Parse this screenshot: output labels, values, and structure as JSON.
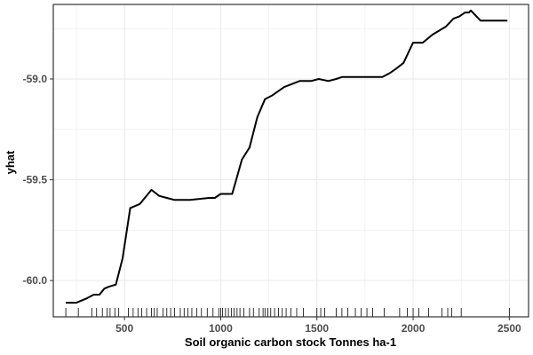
{
  "chart_data": {
    "type": "line",
    "title": "",
    "xlabel": "Soil organic carbon stock Tonnes ha-1",
    "ylabel": "yhat",
    "xlim": [
      130,
      2600
    ],
    "ylim": [
      -60.18,
      -58.63
    ],
    "x_ticks": [
      500,
      1000,
      1500,
      2000,
      2500
    ],
    "y_ticks": [
      -60.0,
      -59.5,
      -59.0
    ],
    "x_tick_labels": [
      "500",
      "1000",
      "1500",
      "2000",
      "2500"
    ],
    "y_tick_labels": [
      "-60.0",
      "-59.5",
      "-59.0"
    ],
    "grid": true,
    "series": [
      {
        "x": [
          195,
          250,
          300,
          340,
          370,
          395,
          420,
          455,
          490,
          530,
          580,
          640,
          680,
          720,
          760,
          840,
          940,
          970,
          1000,
          1020,
          1060,
          1110,
          1150,
          1190,
          1230,
          1270,
          1330,
          1410,
          1470,
          1510,
          1560,
          1600,
          1630,
          1690,
          1780,
          1840,
          1880,
          1910,
          1950,
          2000,
          2050,
          2100,
          2170,
          2210,
          2240,
          2270,
          2290,
          2300,
          2350,
          2400,
          2450,
          2490
        ],
        "y": [
          -60.11,
          -60.11,
          -60.09,
          -60.07,
          -60.07,
          -60.04,
          -60.03,
          -60.02,
          -59.89,
          -59.64,
          -59.62,
          -59.55,
          -59.58,
          -59.59,
          -59.6,
          -59.6,
          -59.59,
          -59.59,
          -59.57,
          -59.57,
          -59.57,
          -59.4,
          -59.34,
          -59.19,
          -59.1,
          -59.08,
          -59.04,
          -59.01,
          -59.01,
          -59.0,
          -59.01,
          -59.0,
          -58.99,
          -58.99,
          -58.99,
          -58.99,
          -58.97,
          -58.95,
          -58.92,
          -58.82,
          -58.82,
          -58.78,
          -58.74,
          -58.7,
          -58.69,
          -58.67,
          -58.67,
          -58.66,
          -58.71,
          -58.71,
          -58.71,
          -58.71
        ]
      }
    ],
    "rug_x": [
      195,
      260,
      330,
      355,
      385,
      410,
      425,
      450,
      470,
      520,
      545,
      570,
      590,
      615,
      640,
      655,
      670,
      700,
      720,
      740,
      760,
      790,
      810,
      830,
      850,
      875,
      900,
      930,
      960,
      990,
      1000,
      1010,
      1025,
      1040,
      1055,
      1070,
      1085,
      1100,
      1120,
      1150,
      1170,
      1200,
      1220,
      1230,
      1245,
      1260,
      1280,
      1300,
      1320,
      1340,
      1365,
      1395,
      1430,
      1500,
      1520,
      1540,
      1600,
      1630,
      1660,
      1700,
      1730,
      1760,
      1790,
      1850,
      1930,
      1970,
      2000,
      2030,
      2080,
      2150,
      2180,
      2200,
      2250,
      2500
    ],
    "colors": {
      "line": "#000000",
      "grid": "#ebebeb",
      "axis": "#333333",
      "background": "#ffffff"
    }
  }
}
